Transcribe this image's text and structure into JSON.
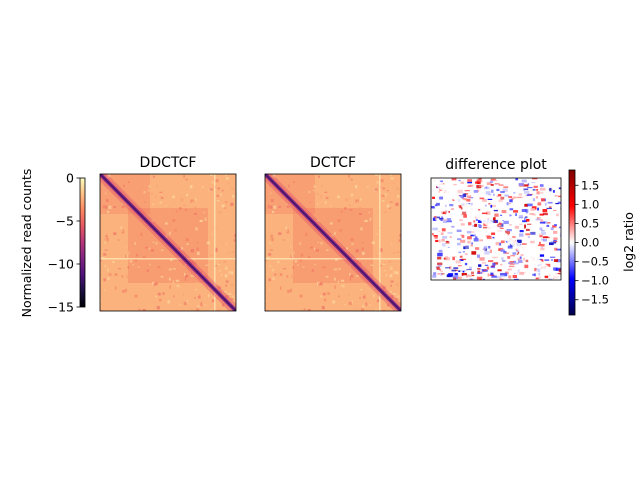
{
  "chart_data": [
    {
      "type": "heatmap",
      "title": "DDCTCF",
      "colormap": "magma",
      "colorbar": {
        "label": "Normalized read counts",
        "ticks": [
          0,
          -5,
          -10,
          -15
        ],
        "tick_labels": [
          "0",
          "−5",
          "−10",
          "−15"
        ],
        "range": [
          -15,
          0
        ],
        "position": "left"
      },
      "axes_ticks": false
    },
    {
      "type": "heatmap",
      "title": "DCTCF",
      "colormap": "magma",
      "axes_ticks": false
    },
    {
      "type": "heatmap",
      "title": "difference plot",
      "colormap": "seismic",
      "colorbar": {
        "label": "log2 ratio",
        "ticks": [
          1.5,
          1.0,
          0.5,
          0.0,
          -0.5,
          -1.0,
          -1.5
        ],
        "tick_labels": [
          "1.5",
          "1.0",
          "0.5",
          "0.0",
          "−0.5",
          "−1.0",
          "−1.5"
        ],
        "range": [
          -1.9,
          1.9
        ],
        "position": "right"
      },
      "axes_ticks": false
    }
  ],
  "colors": {
    "magma_low": "#000004",
    "magma_mid": "#b73779",
    "magma_high": "#fcfdbf",
    "seismic_low": "#00004c",
    "seismic_mid": "#ffffff",
    "seismic_high": "#7f0000"
  }
}
